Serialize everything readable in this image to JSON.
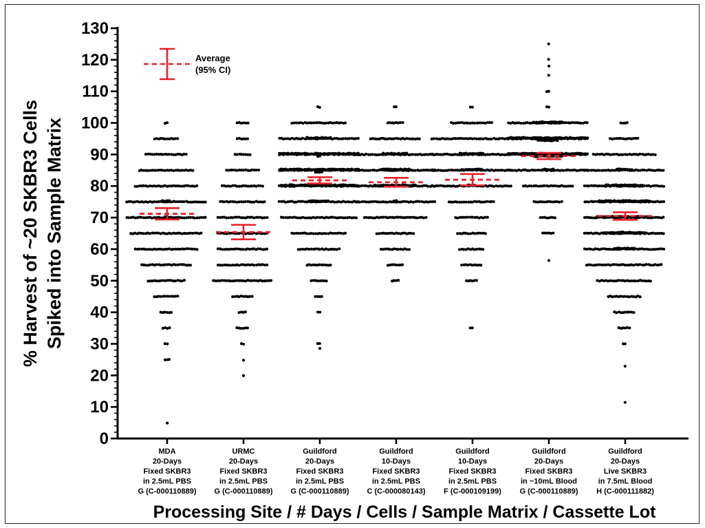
{
  "chart_data": {
    "type": "scatter",
    "subtype": "dot-plot with mean and 95% CI",
    "title": "",
    "ylabel_line1": "% Harvest of ~20 SKBR3 Cells",
    "ylabel_line2": "Spiked into Sample Matrix",
    "xlabel": "Processing Site / #  Days / Cells / Sample Matrix / Cassette Lot",
    "ylim": [
      0,
      130
    ],
    "yticks": [
      0,
      10,
      20,
      30,
      40,
      50,
      60,
      70,
      80,
      90,
      100,
      110,
      120,
      130
    ],
    "grid": false,
    "legend": {
      "position": "top-left",
      "line1": "Average",
      "line2": "(95% CI)"
    },
    "colors": {
      "points": "#000000",
      "mean": "#e8202a"
    },
    "groups": [
      {
        "label_lines": [
          "MDA",
          "20-Days",
          "Fixed SKBR3",
          "in 2.5mL PBS",
          "G (C-000110889)"
        ],
        "mean": 71.2,
        "ci": [
          69.4,
          73.0
        ],
        "point_count": 340,
        "distribution": [
          [
            100,
            2
          ],
          [
            95,
            12
          ],
          [
            90,
            20
          ],
          [
            85,
            26
          ],
          [
            80,
            30
          ],
          [
            75,
            42
          ],
          [
            70,
            40
          ],
          [
            65,
            34
          ],
          [
            60,
            30
          ],
          [
            55,
            24
          ],
          [
            50,
            18
          ],
          [
            45,
            12
          ],
          [
            40,
            6
          ],
          [
            35,
            4
          ],
          [
            30,
            2
          ],
          [
            25,
            3
          ],
          [
            5,
            1
          ]
        ]
      },
      {
        "label_lines": [
          "URMC",
          "20-Days",
          "Fixed SKBR3",
          "in 2.5mL PBS",
          "G (C-000110889)"
        ],
        "mean": 65.4,
        "ci": [
          63.1,
          67.7
        ],
        "point_count": 230,
        "distribution": [
          [
            100,
            6
          ],
          [
            95,
            6
          ],
          [
            90,
            8
          ],
          [
            85,
            16
          ],
          [
            80,
            20
          ],
          [
            75,
            22
          ],
          [
            70,
            24
          ],
          [
            65,
            24
          ],
          [
            60,
            24
          ],
          [
            55,
            24
          ],
          [
            50,
            28
          ],
          [
            45,
            10
          ],
          [
            40,
            4
          ],
          [
            35,
            6
          ],
          [
            30,
            2
          ],
          [
            24,
            1
          ],
          [
            20,
            1
          ]
        ]
      },
      {
        "label_lines": [
          "Guildford",
          "20-Days",
          "Fixed SKBR3",
          "in 2.5mL PBS",
          "G (C-000110889)"
        ],
        "mean": 81.8,
        "ci": [
          80.8,
          82.8
        ],
        "point_count": 470,
        "distribution": [
          [
            105,
            2
          ],
          [
            100,
            26
          ],
          [
            95,
            50
          ],
          [
            90,
            78
          ],
          [
            85,
            80
          ],
          [
            80,
            74
          ],
          [
            75,
            48
          ],
          [
            70,
            36
          ],
          [
            65,
            26
          ],
          [
            60,
            20
          ],
          [
            55,
            12
          ],
          [
            50,
            8
          ],
          [
            45,
            4
          ],
          [
            40,
            2
          ],
          [
            30,
            2
          ],
          [
            28,
            1
          ]
        ]
      },
      {
        "label_lines": [
          "Guildford",
          "10-Days",
          "Fixed SKBR3",
          "in 2.5mL PBS",
          "C (C-000080143)"
        ],
        "mean": 81.2,
        "ci": [
          79.8,
          82.6
        ],
        "point_count": 320,
        "distribution": [
          [
            105,
            2
          ],
          [
            100,
            8
          ],
          [
            95,
            24
          ],
          [
            90,
            50
          ],
          [
            85,
            52
          ],
          [
            80,
            58
          ],
          [
            75,
            40
          ],
          [
            70,
            30
          ],
          [
            65,
            18
          ],
          [
            60,
            14
          ],
          [
            55,
            8
          ],
          [
            50,
            4
          ]
        ]
      },
      {
        "label_lines": [
          "Guildford",
          "10-Days",
          "Fixed SKBR3",
          "in 2.5mL PBS",
          "F (C-000109199)"
        ],
        "mean": 82.0,
        "ci": [
          80.2,
          83.8
        ],
        "point_count": 300,
        "distribution": [
          [
            105,
            2
          ],
          [
            100,
            20
          ],
          [
            95,
            38
          ],
          [
            90,
            50
          ],
          [
            85,
            48
          ],
          [
            80,
            42
          ],
          [
            75,
            22
          ],
          [
            70,
            16
          ],
          [
            65,
            14
          ],
          [
            60,
            12
          ],
          [
            55,
            10
          ],
          [
            50,
            6
          ],
          [
            35,
            2
          ]
        ]
      },
      {
        "label_lines": [
          "Guildford",
          "20-Days",
          "Fixed SKBR3",
          "in ~10mL Blood",
          "G (C-000110889)"
        ],
        "mean": 89.5,
        "ci": [
          88.5,
          90.5
        ],
        "point_count": 350,
        "distribution": [
          [
            125,
            1
          ],
          [
            121,
            1
          ],
          [
            117,
            1
          ],
          [
            115,
            1
          ],
          [
            110,
            2
          ],
          [
            105,
            2
          ],
          [
            100,
            52
          ],
          [
            95,
            86
          ],
          [
            90,
            90
          ],
          [
            85,
            44
          ],
          [
            80,
            24
          ],
          [
            75,
            14
          ],
          [
            70,
            8
          ],
          [
            65,
            6
          ],
          [
            57,
            1
          ]
        ]
      },
      {
        "label_lines": [
          "Guildford",
          "20-Days",
          "Live SKBR3",
          "in 7.5mL Blood",
          "H (C-000111882)"
        ],
        "mean": 70.5,
        "ci": [
          69.3,
          71.7
        ],
        "point_count": 480,
        "distribution": [
          [
            100,
            4
          ],
          [
            95,
            14
          ],
          [
            90,
            30
          ],
          [
            85,
            46
          ],
          [
            80,
            56
          ],
          [
            75,
            62
          ],
          [
            70,
            64
          ],
          [
            65,
            58
          ],
          [
            60,
            48
          ],
          [
            55,
            36
          ],
          [
            50,
            26
          ],
          [
            45,
            16
          ],
          [
            40,
            10
          ],
          [
            35,
            6
          ],
          [
            30,
            2
          ],
          [
            23,
            1
          ],
          [
            11,
            1
          ]
        ]
      }
    ]
  }
}
